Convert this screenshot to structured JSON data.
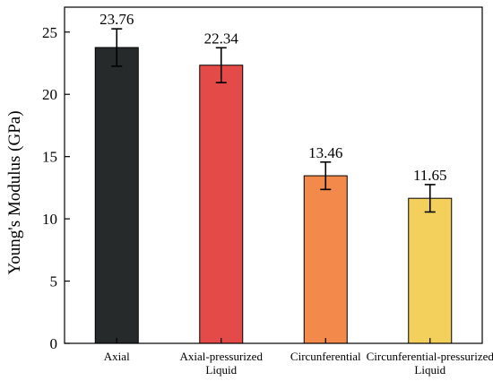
{
  "chart_data": {
    "type": "bar",
    "title": "",
    "xlabel": "",
    "ylabel": "Young's Modulus (GPa)",
    "ylim": [
      0,
      27
    ],
    "yticks": [
      0,
      5,
      10,
      15,
      20,
      25
    ],
    "grid": false,
    "categories": [
      [
        "Axial"
      ],
      [
        "Axial-pressurized",
        "Liquid"
      ],
      [
        "Circunferential"
      ],
      [
        "Circunferential-pressurized",
        "Liquid"
      ]
    ],
    "values": [
      23.76,
      22.34,
      13.46,
      11.65
    ],
    "value_labels": [
      "23.76",
      "22.34",
      "13.46",
      "11.65"
    ],
    "errors": [
      1.5,
      1.4,
      1.1,
      1.1
    ],
    "colors": [
      "#262a2b",
      "#e44a47",
      "#f3894b",
      "#f3d05c"
    ]
  }
}
